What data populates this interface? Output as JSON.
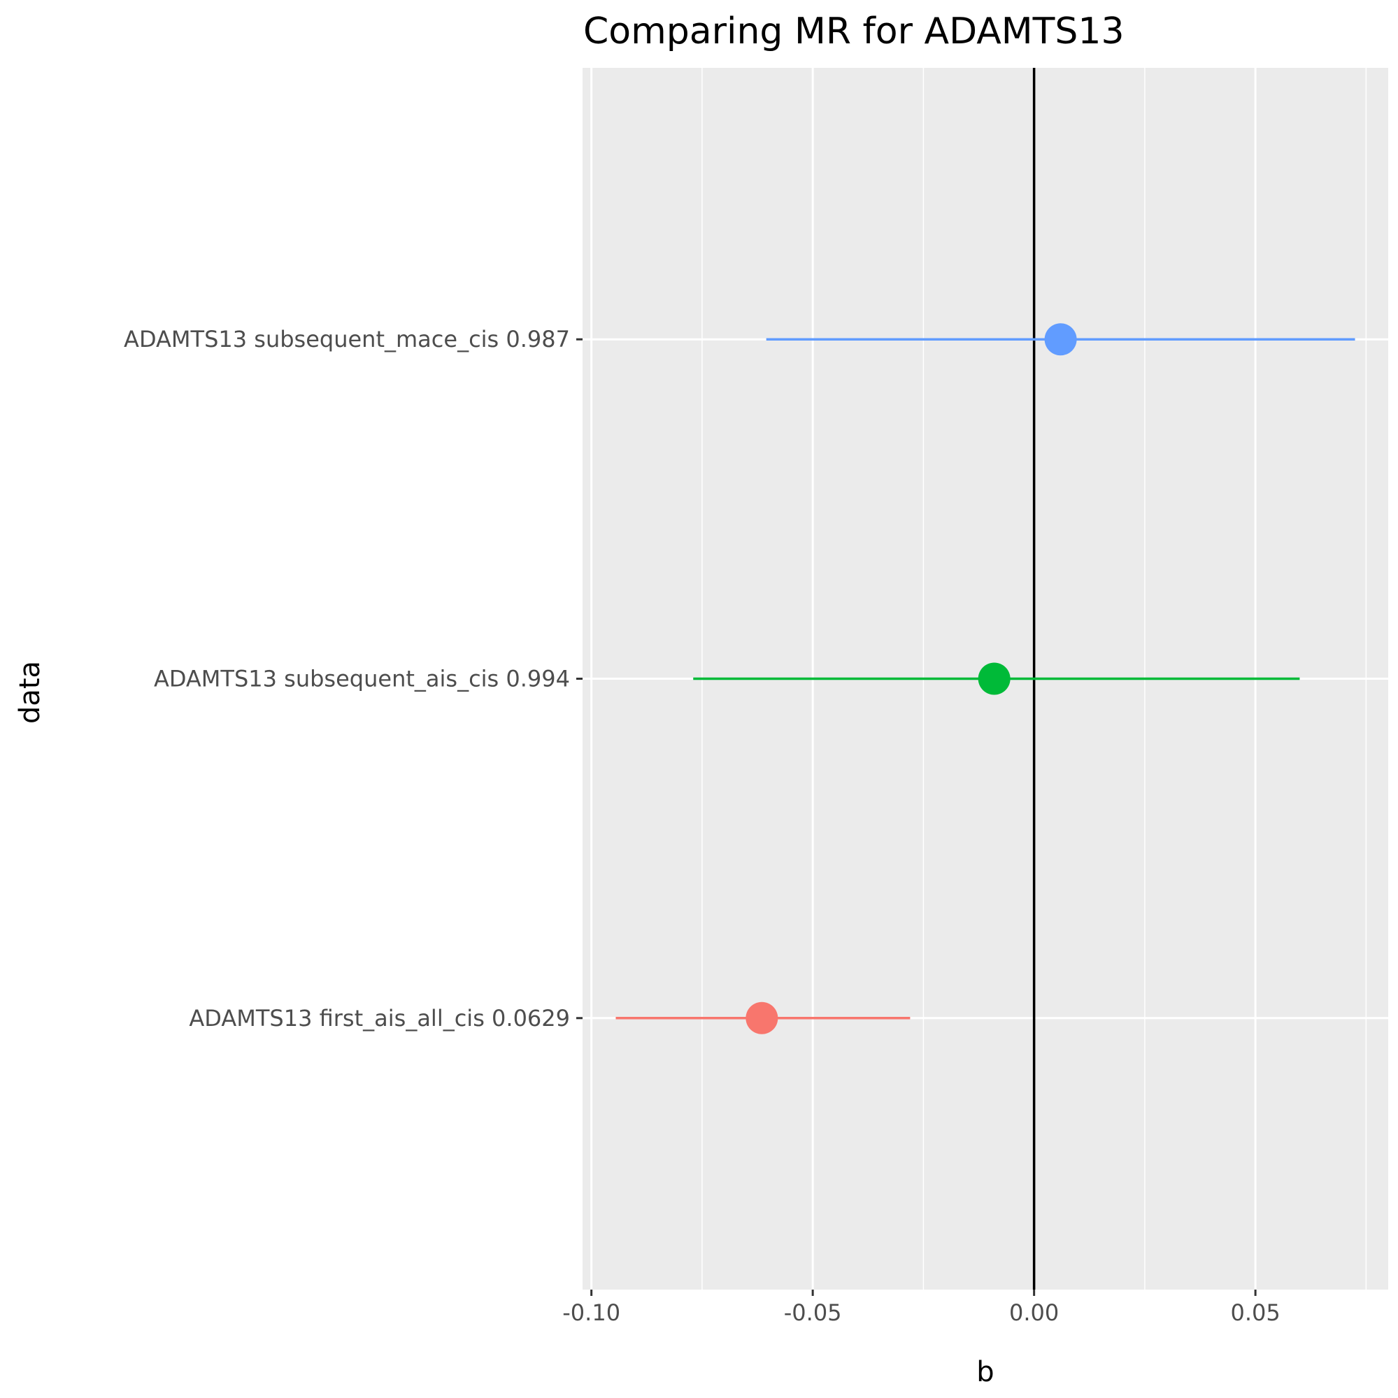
{
  "chart_data": {
    "type": "forest",
    "title": "Comparing MR for ADAMTS13",
    "xlabel": "b",
    "ylabel": "data",
    "xlim": [
      -0.102,
      0.08
    ],
    "x_ticks": [
      -0.1,
      -0.05,
      0.0,
      0.05
    ],
    "x_tick_labels": [
      "-0.10",
      "-0.05",
      "0.00",
      "0.05"
    ],
    "reference_line_x": 0.0,
    "grid": true,
    "legend": "none",
    "rows": [
      {
        "label": "ADAMTS13 first_ais_all_cis 0.0629",
        "b": -0.0615,
        "lo": -0.0945,
        "hi": -0.028,
        "color": "#F8766D"
      },
      {
        "label": "ADAMTS13 subsequent_ais_cis 0.994",
        "b": -0.009,
        "lo": -0.077,
        "hi": 0.06,
        "color": "#00BA38"
      },
      {
        "label": "ADAMTS13 subsequent_mace_cis 0.987",
        "b": 0.006,
        "lo": -0.0605,
        "hi": 0.0725,
        "color": "#619CFF"
      }
    ]
  }
}
